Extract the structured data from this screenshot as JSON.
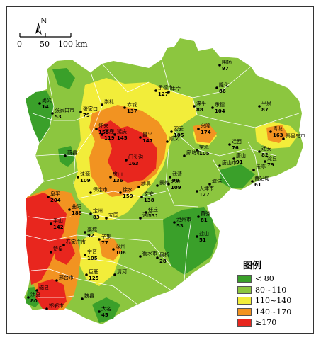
{
  "compass": {
    "label": "N"
  },
  "scale": {
    "ticks": [
      "0",
      "50",
      "100 km"
    ]
  },
  "legend": {
    "title": "图例",
    "items": [
      {
        "label": "< 80",
        "color": "#3aa02a"
      },
      {
        "label": "80~110",
        "color": "#8cc63f"
      },
      {
        "label": "110~140",
        "color": "#f2ed3a"
      },
      {
        "label": "140~170",
        "color": "#f29321"
      },
      {
        "label": "≥170",
        "color": "#e8261e"
      }
    ]
  },
  "stations": [
    {
      "name": "围场",
      "value": "97"
    },
    {
      "name": "承德市",
      "value": "127"
    },
    {
      "name": "丰宁",
      "value": ""
    },
    {
      "name": "隆化",
      "value": "86"
    },
    {
      "name": "滦平",
      "value": "88"
    },
    {
      "name": "承德",
      "value": "104"
    },
    {
      "name": "平泉",
      "value": "87"
    },
    {
      "name": "尚义",
      "value": "14"
    },
    {
      "name": "张家口市",
      "value": "53"
    },
    {
      "name": "张家口",
      "value": "79"
    },
    {
      "name": "崇礼",
      "value": ""
    },
    {
      "name": "赤城",
      "value": "137"
    },
    {
      "name": "怀来",
      "value": "158"
    },
    {
      "name": "涿鹿",
      "value": "119"
    },
    {
      "name": "延庆",
      "value": "145"
    },
    {
      "name": "密云",
      "value": "105"
    },
    {
      "name": "兴隆",
      "value": "174"
    },
    {
      "name": "青龙",
      "value": "163"
    },
    {
      "name": "秦皇岛市",
      "value": ""
    },
    {
      "name": "迁西",
      "value": "76"
    },
    {
      "name": "迁安",
      "value": "82"
    },
    {
      "name": "滦县",
      "value": "79"
    },
    {
      "name": "蔚县",
      "value": ""
    },
    {
      "name": "昌平",
      "value": "147"
    },
    {
      "name": "顺义",
      "value": ""
    },
    {
      "name": "门头沟",
      "value": "163"
    },
    {
      "name": "涞源",
      "value": "109"
    },
    {
      "name": "房山",
      "value": "136"
    },
    {
      "name": "廊坊市",
      "value": ""
    },
    {
      "name": "宝坻",
      "value": "105"
    },
    {
      "name": "唐山市",
      "value": ""
    },
    {
      "name": "唐山",
      "value": "91"
    },
    {
      "name": "乐亭",
      "value": ""
    },
    {
      "name": "曹妃甸",
      "value": "61"
    },
    {
      "name": "武清",
      "value": "98"
    },
    {
      "name": "北辰",
      "value": "109"
    },
    {
      "name": "天津市",
      "value": "127"
    },
    {
      "name": "塘沽",
      "value": ""
    },
    {
      "name": "保定市",
      "value": ""
    },
    {
      "name": "徐水",
      "value": "159"
    },
    {
      "name": "雄县",
      "value": ""
    },
    {
      "name": "霸州",
      "value": ""
    },
    {
      "name": "文安",
      "value": "138"
    },
    {
      "name": "阜平",
      "value": "204"
    },
    {
      "name": "曲阳",
      "value": "188"
    },
    {
      "name": "定州",
      "value": "83"
    },
    {
      "name": "安国",
      "value": ""
    },
    {
      "name": "沧州市",
      "value": "53"
    },
    {
      "name": "黄骅",
      "value": "81"
    },
    {
      "name": "任丘",
      "value": "131"
    },
    {
      "name": "河间",
      "value": ""
    },
    {
      "name": "盐山",
      "value": "51"
    },
    {
      "name": "平山",
      "value": "142"
    },
    {
      "name": "石家庄市",
      "value": ""
    },
    {
      "name": "藁城",
      "value": "92"
    },
    {
      "name": "辛集",
      "value": "77"
    },
    {
      "name": "深州",
      "value": "106"
    },
    {
      "name": "衡水市",
      "value": ""
    },
    {
      "name": "吴桥",
      "value": "28"
    },
    {
      "name": "赞皇",
      "value": ""
    },
    {
      "name": "宁晋",
      "value": "105"
    },
    {
      "name": "巨鹿",
      "value": "125"
    },
    {
      "name": "邢台市",
      "value": ""
    },
    {
      "name": "清河",
      "value": ""
    },
    {
      "name": "邯郸市",
      "value": ""
    },
    {
      "name": "涉县",
      "value": "80"
    },
    {
      "name": "磁县",
      "value": ""
    },
    {
      "name": "大名",
      "value": "45"
    },
    {
      "name": "魏县",
      "value": ""
    }
  ]
}
